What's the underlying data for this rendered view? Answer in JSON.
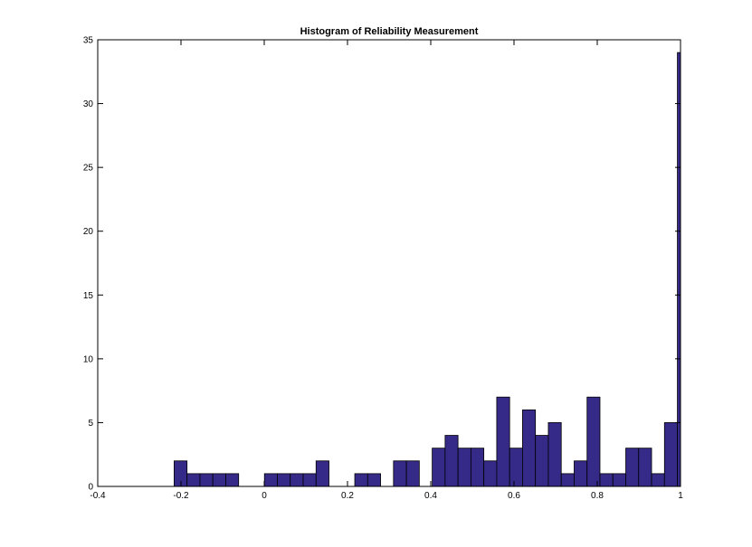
{
  "chart_data": {
    "type": "bar",
    "title": "Histogram of Reliability Measurement",
    "xlabel": "",
    "ylabel": "",
    "xlim": [
      -0.4,
      1
    ],
    "ylim": [
      0,
      35
    ],
    "x_ticks": [
      "-0.4",
      "-0.2",
      "0",
      "0.2",
      "0.4",
      "0.6",
      "0.8",
      "1"
    ],
    "y_ticks": [
      "0",
      "5",
      "10",
      "15",
      "20",
      "25",
      "30",
      "35"
    ],
    "grid": false,
    "bar_color": "#352a87",
    "bin_width": 0.031,
    "bins": [
      {
        "x": -0.201,
        "value": 2
      },
      {
        "x": -0.17,
        "value": 1
      },
      {
        "x": -0.139,
        "value": 1
      },
      {
        "x": -0.108,
        "value": 1
      },
      {
        "x": -0.077,
        "value": 1
      },
      {
        "x": 0.016,
        "value": 1
      },
      {
        "x": 0.047,
        "value": 1
      },
      {
        "x": 0.078,
        "value": 1
      },
      {
        "x": 0.109,
        "value": 1
      },
      {
        "x": 0.14,
        "value": 2
      },
      {
        "x": 0.233,
        "value": 1
      },
      {
        "x": 0.264,
        "value": 1
      },
      {
        "x": 0.326,
        "value": 2
      },
      {
        "x": 0.357,
        "value": 2
      },
      {
        "x": 0.419,
        "value": 3
      },
      {
        "x": 0.45,
        "value": 4
      },
      {
        "x": 0.481,
        "value": 3
      },
      {
        "x": 0.512,
        "value": 3
      },
      {
        "x": 0.543,
        "value": 2
      },
      {
        "x": 0.574,
        "value": 7
      },
      {
        "x": 0.605,
        "value": 3
      },
      {
        "x": 0.636,
        "value": 6
      },
      {
        "x": 0.667,
        "value": 4
      },
      {
        "x": 0.698,
        "value": 5
      },
      {
        "x": 0.729,
        "value": 1
      },
      {
        "x": 0.76,
        "value": 2
      },
      {
        "x": 0.791,
        "value": 7
      },
      {
        "x": 0.822,
        "value": 1
      },
      {
        "x": 0.853,
        "value": 1
      },
      {
        "x": 0.884,
        "value": 3
      },
      {
        "x": 0.915,
        "value": 3
      },
      {
        "x": 0.946,
        "value": 1
      },
      {
        "x": 0.977,
        "value": 5
      },
      {
        "x": 1.008,
        "value": 34
      }
    ]
  }
}
